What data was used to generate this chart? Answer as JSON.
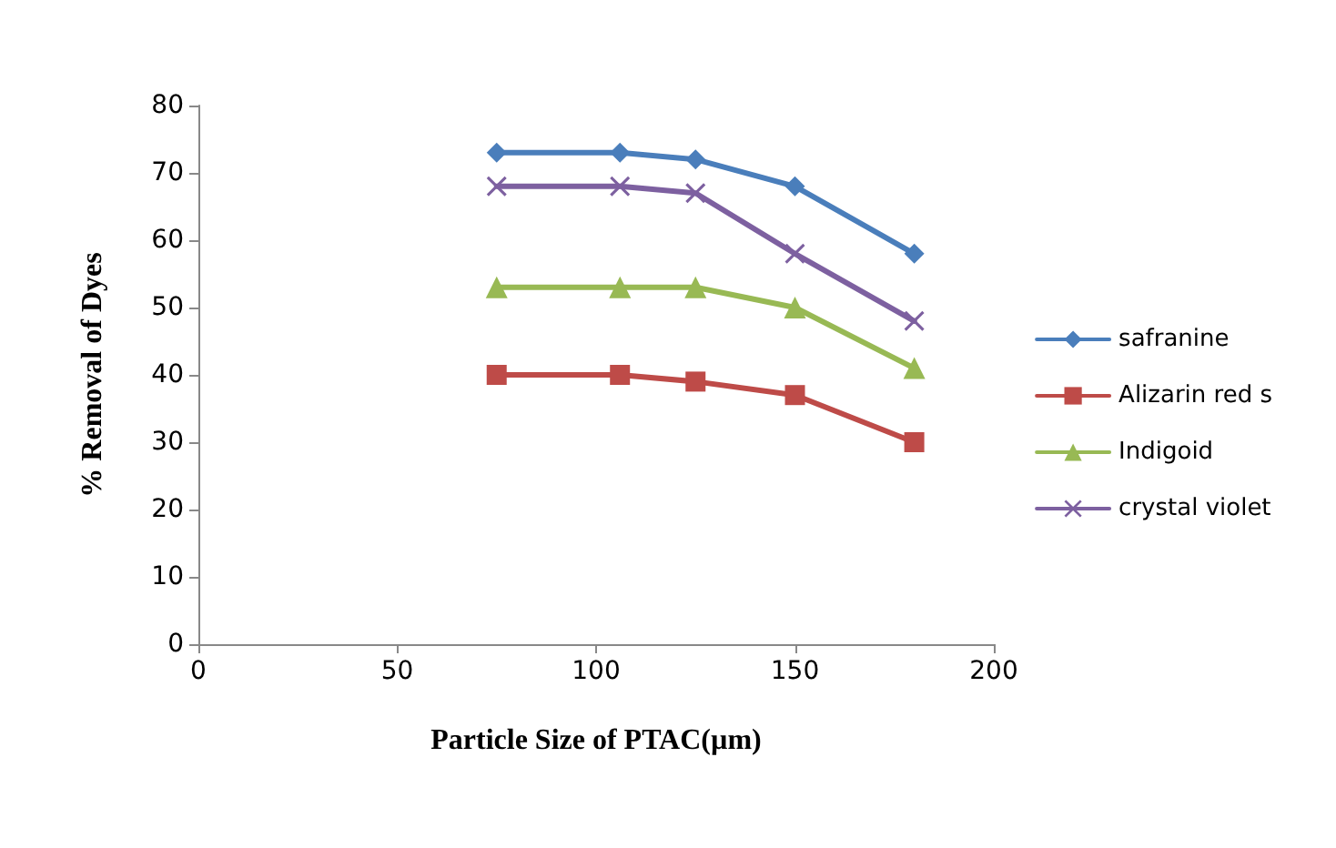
{
  "chart_data": {
    "type": "line",
    "xlabel": "Particle Size of PTAC(µm)",
    "ylabel": "% Removal of Dyes",
    "x": [
      75,
      106,
      125,
      150,
      180
    ],
    "series": [
      {
        "name": "safranine",
        "color": "#4a7ebb",
        "marker": "diamond",
        "values": [
          73,
          73,
          72,
          68,
          58
        ]
      },
      {
        "name": "Alizarin red s",
        "color": "#be4b48",
        "marker": "square",
        "values": [
          40,
          40,
          39,
          37,
          30
        ]
      },
      {
        "name": "Indigoid",
        "color": "#98b954",
        "marker": "triangle",
        "values": [
          53,
          53,
          53,
          50,
          41
        ]
      },
      {
        "name": "crystal violet",
        "color": "#7d60a0",
        "marker": "cross",
        "values": [
          68,
          68,
          67,
          58,
          48
        ]
      }
    ],
    "xlim": [
      0,
      200
    ],
    "xticks": [
      0,
      50,
      100,
      150,
      200
    ],
    "ylim": [
      0,
      80
    ],
    "yticks": [
      0,
      10,
      20,
      30,
      40,
      50,
      60,
      70,
      80
    ],
    "grid": false,
    "legend": "right",
    "line_style": "solid"
  }
}
